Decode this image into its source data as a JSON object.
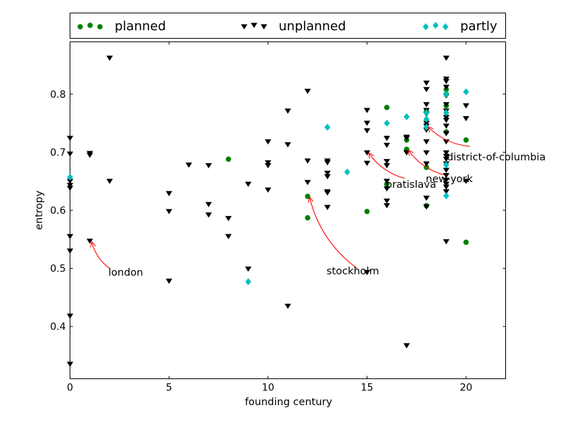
{
  "chart_data": {
    "type": "scatter",
    "xlabel": "founding century",
    "ylabel": "entropy",
    "xlim": [
      0,
      22
    ],
    "ylim": [
      0.31,
      0.89
    ],
    "xticks": [
      "0",
      "5",
      "10",
      "15",
      "20"
    ],
    "yticks": [
      "0.4",
      "0.5",
      "0.6",
      "0.7",
      "0.8"
    ],
    "legend_position": "top, above plot",
    "series": [
      {
        "name": "planned",
        "marker": "circle",
        "color": "#008000",
        "points": [
          [
            8,
            0.688
          ],
          [
            12,
            0.624
          ],
          [
            12,
            0.587
          ],
          [
            15,
            0.598
          ],
          [
            16,
            0.777
          ],
          [
            16,
            0.645
          ],
          [
            17,
            0.721
          ],
          [
            17,
            0.705
          ],
          [
            17,
            0.703
          ],
          [
            18,
            0.77
          ],
          [
            18,
            0.674
          ],
          [
            18,
            0.608
          ],
          [
            19,
            0.808
          ],
          [
            19,
            0.8
          ],
          [
            19,
            0.78
          ],
          [
            19,
            0.735
          ],
          [
            20,
            0.721
          ],
          [
            20,
            0.545
          ]
        ]
      },
      {
        "name": "unplanned",
        "marker": "triangle-down",
        "color": "#000000",
        "points": [
          [
            0,
            0.724
          ],
          [
            0,
            0.697
          ],
          [
            0,
            0.65
          ],
          [
            0,
            0.643
          ],
          [
            0,
            0.638
          ],
          [
            0,
            0.555
          ],
          [
            0,
            0.53
          ],
          [
            0,
            0.418
          ],
          [
            0,
            0.335
          ],
          [
            1,
            0.698
          ],
          [
            1,
            0.695
          ],
          [
            1,
            0.547
          ],
          [
            2,
            0.862
          ],
          [
            2,
            0.65
          ],
          [
            5,
            0.629
          ],
          [
            5,
            0.598
          ],
          [
            5,
            0.478
          ],
          [
            6,
            0.678
          ],
          [
            7,
            0.677
          ],
          [
            7,
            0.61
          ],
          [
            7,
            0.592
          ],
          [
            8,
            0.586
          ],
          [
            8,
            0.555
          ],
          [
            9,
            0.645
          ],
          [
            9,
            0.499
          ],
          [
            10,
            0.718
          ],
          [
            10,
            0.682
          ],
          [
            10,
            0.677
          ],
          [
            10,
            0.635
          ],
          [
            11,
            0.771
          ],
          [
            11,
            0.713
          ],
          [
            11,
            0.435
          ],
          [
            12,
            0.805
          ],
          [
            12,
            0.685
          ],
          [
            12,
            0.648
          ],
          [
            13,
            0.685
          ],
          [
            13,
            0.682
          ],
          [
            13,
            0.664
          ],
          [
            13,
            0.658
          ],
          [
            13,
            0.632
          ],
          [
            13,
            0.63
          ],
          [
            13,
            0.605
          ],
          [
            15,
            0.772
          ],
          [
            15,
            0.75
          ],
          [
            15,
            0.737
          ],
          [
            15,
            0.699
          ],
          [
            15,
            0.681
          ],
          [
            15,
            0.493
          ],
          [
            16,
            0.724
          ],
          [
            16,
            0.712
          ],
          [
            16,
            0.684
          ],
          [
            16,
            0.677
          ],
          [
            16,
            0.65
          ],
          [
            16,
            0.637
          ],
          [
            16,
            0.616
          ],
          [
            16,
            0.608
          ],
          [
            17,
            0.726
          ],
          [
            17,
            0.724
          ],
          [
            17,
            0.699
          ],
          [
            17,
            0.367
          ],
          [
            18,
            0.819
          ],
          [
            18,
            0.808
          ],
          [
            18,
            0.782
          ],
          [
            18,
            0.772
          ],
          [
            18,
            0.765
          ],
          [
            18,
            0.75
          ],
          [
            18,
            0.745
          ],
          [
            18,
            0.738
          ],
          [
            18,
            0.718
          ],
          [
            18,
            0.699
          ],
          [
            18,
            0.68
          ],
          [
            18,
            0.621
          ],
          [
            18,
            0.606
          ],
          [
            19,
            0.862
          ],
          [
            19,
            0.826
          ],
          [
            19,
            0.822
          ],
          [
            19,
            0.812
          ],
          [
            19,
            0.797
          ],
          [
            19,
            0.782
          ],
          [
            19,
            0.771
          ],
          [
            19,
            0.76
          ],
          [
            19,
            0.755
          ],
          [
            19,
            0.745
          ],
          [
            19,
            0.732
          ],
          [
            19,
            0.718
          ],
          [
            19,
            0.699
          ],
          [
            19,
            0.693
          ],
          [
            19,
            0.688
          ],
          [
            19,
            0.68
          ],
          [
            19,
            0.669
          ],
          [
            19,
            0.66
          ],
          [
            19,
            0.652
          ],
          [
            19,
            0.645
          ],
          [
            19,
            0.64
          ],
          [
            19,
            0.632
          ],
          [
            19,
            0.546
          ],
          [
            20,
            0.78
          ],
          [
            20,
            0.758
          ],
          [
            20,
            0.65
          ]
        ]
      },
      {
        "name": "partly",
        "marker": "diamond",
        "color": "#00bfbf",
        "points": [
          [
            0,
            0.657
          ],
          [
            9,
            0.477
          ],
          [
            13,
            0.743
          ],
          [
            14,
            0.666
          ],
          [
            16,
            0.75
          ],
          [
            17,
            0.761
          ],
          [
            18,
            0.768
          ],
          [
            18,
            0.757
          ],
          [
            18,
            0.743
          ],
          [
            19,
            0.8
          ],
          [
            19,
            0.768
          ],
          [
            19,
            0.678
          ],
          [
            19,
            0.625
          ],
          [
            20,
            0.804
          ]
        ]
      }
    ],
    "annotations": [
      {
        "text": "london",
        "arrow_from": [
          2.0,
          0.5
        ],
        "arrow_to": [
          1.1,
          0.545
        ]
      },
      {
        "text": "stockholm",
        "arrow_from": [
          14.5,
          0.5
        ],
        "arrow_to": [
          12.1,
          0.622
        ]
      },
      {
        "text": "bratislava",
        "arrow_from": [
          16.9,
          0.655
        ],
        "arrow_to": [
          15.1,
          0.698
        ]
      },
      {
        "text": "new-york",
        "arrow_from": [
          18.9,
          0.661
        ],
        "arrow_to": [
          17.1,
          0.703
        ]
      },
      {
        "text": "district-of-columbia",
        "arrow_from": [
          20.2,
          0.71
        ],
        "arrow_to": [
          18.1,
          0.743
        ]
      }
    ]
  }
}
